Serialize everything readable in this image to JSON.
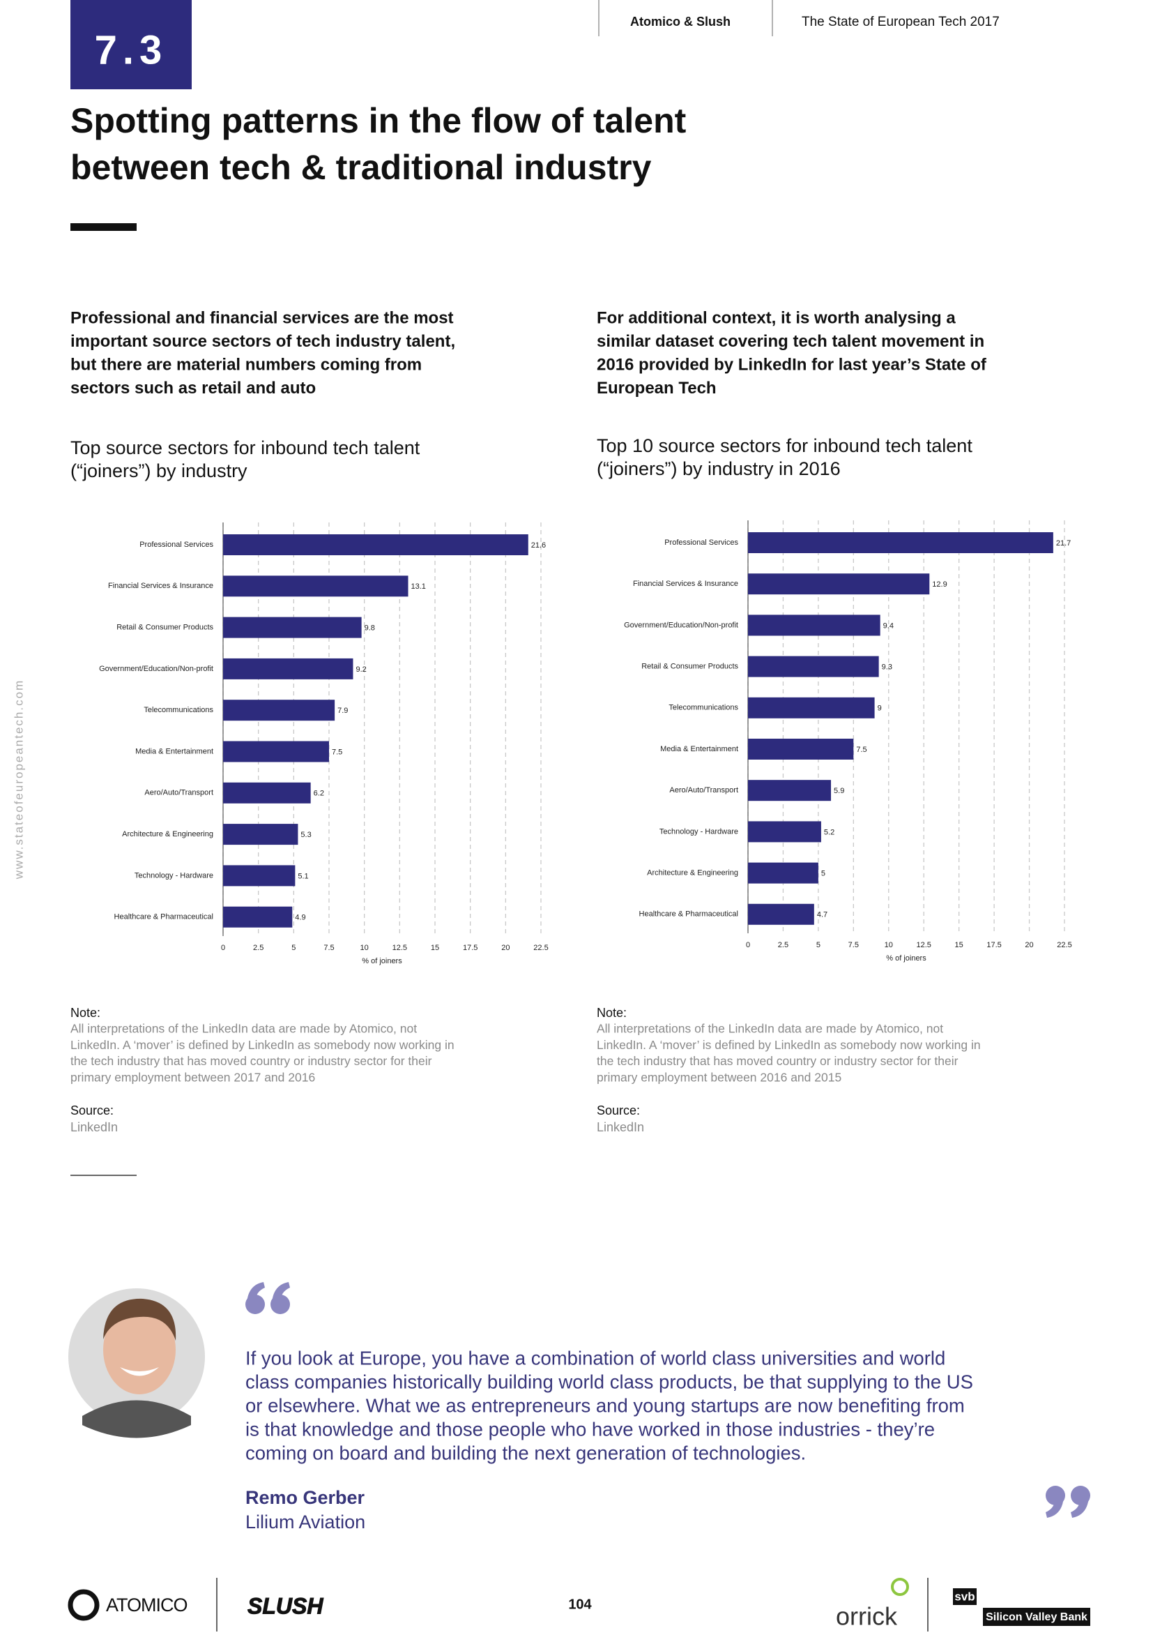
{
  "header": {
    "section": "7.3",
    "brand": "Atomico & Slush",
    "report": "The State of European Tech 2017"
  },
  "title": [
    "Spotting patterns in the flow of talent",
    "between tech & traditional industry"
  ],
  "sidebar": "www.stateofeuropeantech.com",
  "columns": [
    {
      "lead": [
        "Professional and financial services are the most",
        "important source sectors of tech industry talent,",
        "but there are material numbers coming from",
        "sectors such as retail and auto"
      ],
      "note_label": "Note:",
      "note": [
        "All interpretations of the LinkedIn data are made by Atomico, not",
        "LinkedIn. A ‘mover’ is defined by LinkedIn as somebody now working in",
        "the tech industry that has moved country or industry sector for their",
        "primary employment between 2017 and 2016"
      ],
      "source_label": "Source:",
      "source": "LinkedIn"
    },
    {
      "lead": [
        "For additional context, it is worth analysing a",
        "similar dataset covering tech talent movement in",
        "2016 provided by LinkedIn for last year’s State of",
        "European Tech"
      ],
      "note_label": "Note:",
      "note": [
        "All interpretations of the LinkedIn data are made by Atomico, not",
        "LinkedIn. A ‘mover’ is defined by LinkedIn as somebody now working in",
        "the tech industry that has moved country or industry sector for their",
        "primary employment between 2016 and 2015"
      ],
      "source_label": "Source:",
      "source": "LinkedIn"
    }
  ],
  "chart_data": [
    {
      "type": "bar",
      "orientation": "horizontal",
      "title": [
        "Top source sectors for inbound tech talent",
        "(“joiners”) by industry"
      ],
      "categories": [
        "Professional Services",
        "Financial Services & Insurance",
        "Retail & Consumer Products",
        "Government/Education/Non-profit",
        "Telecommunications",
        "Media & Entertainment",
        "Aero/Auto/Transport",
        "Architecture & Engineering",
        "Technology - Hardware",
        "Healthcare & Pharmaceutical"
      ],
      "values": [
        21.6,
        13.1,
        9.8,
        9.2,
        7.9,
        7.5,
        6.2,
        5.3,
        5.1,
        4.9
      ],
      "color": "#2d2b7d",
      "xlim": [
        0,
        22.5
      ],
      "xticks": [
        0,
        2.5,
        5,
        7.5,
        10,
        12.5,
        15,
        17.5,
        20,
        22.5
      ],
      "xlabel": "% of joiners",
      "grid": true
    },
    {
      "type": "bar",
      "orientation": "horizontal",
      "title": [
        "Top 10 source sectors for inbound tech talent",
        "(“joiners”) by industry in 2016"
      ],
      "categories": [
        "Professional Services",
        "Financial Services & Insurance",
        "Government/Education/Non-profit",
        "Retail & Consumer Products",
        "Telecommunications",
        "Media & Entertainment",
        "Aero/Auto/Transport",
        "Technology - Hardware",
        "Architecture & Engineering",
        "Healthcare & Pharmaceutical"
      ],
      "values": [
        21.7,
        12.9,
        9.4,
        9.3,
        9,
        7.5,
        5.9,
        5.2,
        5,
        4.7
      ],
      "color": "#2d2b7d",
      "xlim": [
        0,
        22.5
      ],
      "xticks": [
        0,
        2.5,
        5,
        7.5,
        10,
        12.5,
        15,
        17.5,
        20,
        22.5
      ],
      "xlabel": "% of joiners",
      "grid": true
    }
  ],
  "quote": {
    "text": [
      "If you look at Europe, you have a combination of world class universities and world",
      "class companies historically building world class products, be that supplying to the US",
      "or elsewhere. What we as entrepreneurs and young startups are now benefiting from",
      "is that knowledge and those people who have worked in those industries - they’re",
      "coming on board and building the next generation of technologies."
    ],
    "name": "Remo Gerber",
    "company": "Lilium Aviation"
  },
  "footer": {
    "page": "104",
    "logos": [
      "ATOMICO",
      "SLUSH",
      "orrick",
      "svb",
      "Silicon Valley Bank"
    ]
  }
}
